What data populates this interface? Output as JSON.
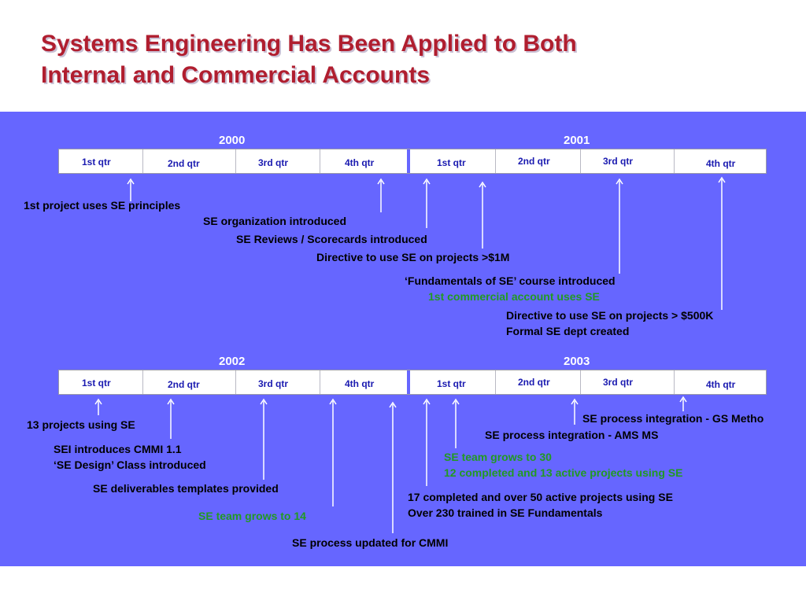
{
  "title": {
    "line1": "Systems Engineering Has Been Applied to Both",
    "line2": "Internal and Commercial Accounts"
  },
  "timeline1": {
    "year_left": "2000",
    "year_right": "2001",
    "quarters": [
      "1st qtr",
      "2nd qtr",
      "3rd qtr",
      "4th qtr",
      "1st qtr",
      "2nd qtr",
      "3rd qtr",
      "4th qtr"
    ],
    "events": [
      "1st project uses SE principles",
      "SE organization introduced",
      "SE Reviews / Scorecards introduced",
      "Directive to use SE on projects >$1M",
      "‘Fundamentals of SE’ course introduced",
      "1st commercial account uses SE",
      "Directive to use SE on projects > $500K",
      "Formal SE dept created"
    ]
  },
  "timeline2": {
    "year_left": "2002",
    "year_right": "2003",
    "quarters": [
      "1st qtr",
      "2nd qtr",
      "3rd qtr",
      "4th qtr",
      "1st qtr",
      "2nd qtr",
      "3rd qtr",
      "4th qtr"
    ],
    "events": [
      "13 projects using SE",
      "SEI introduces CMMI 1.1",
      "‘SE Design’ Class introduced",
      "SE deliverables templates provided",
      "SE team grows to 14",
      "SE process updated for CMMI",
      "17 completed and over 50 active projects using SE",
      "Over 230 trained in SE Fundamentals",
      "SE team grows to 30",
      "12 completed and 13 active projects using SE",
      "SE process integration - AMS MS",
      "SE process integration - GS Metho"
    ]
  },
  "colors": {
    "title": "#b01e2f",
    "band": "#6666ff",
    "quarter_text": "#1a1ab0",
    "highlight_text": "#229922"
  }
}
